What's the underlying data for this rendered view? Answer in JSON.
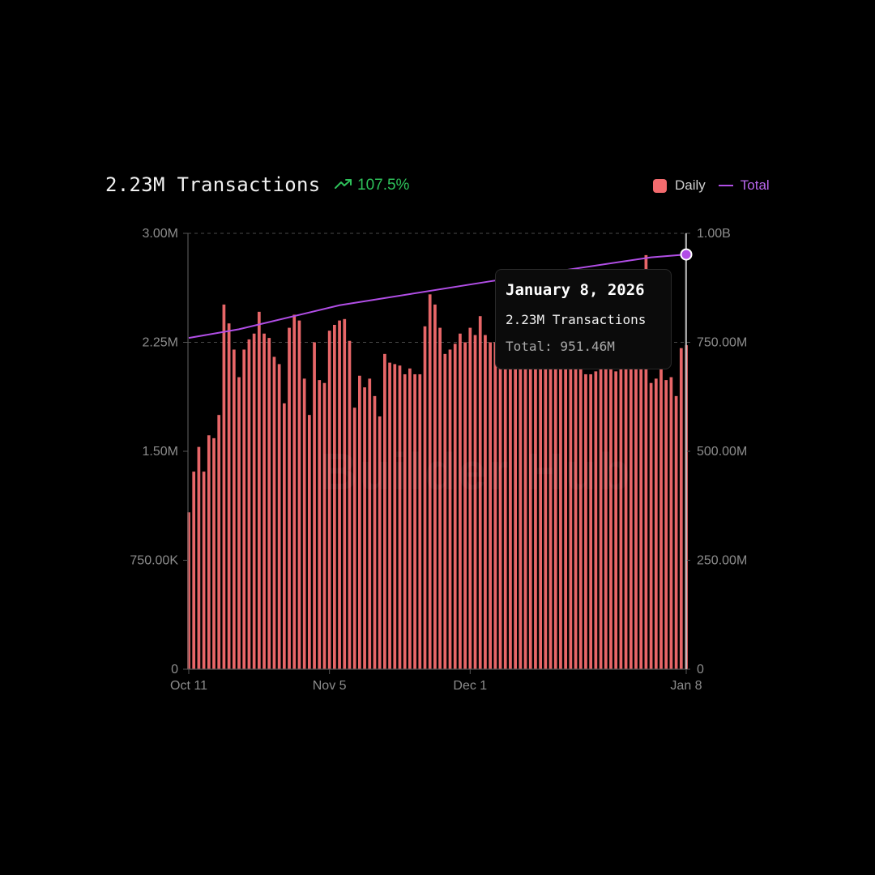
{
  "header": {
    "title": "2.23M Transactions",
    "change": "107.5%",
    "change_color": "#2ec05a",
    "trend_icon": "trend-up-icon"
  },
  "legend": {
    "daily_label": "Daily",
    "total_label": "Total",
    "daily_color": "#f36b6e",
    "total_color": "#b14ee6"
  },
  "tooltip": {
    "date": "January 8, 2026",
    "transactions": "2.23M Transactions",
    "total": "Total: 951.46M"
  },
  "watermark": {
    "text": "Builder Hub"
  },
  "chart_data": {
    "type": "bar",
    "title": "2.23M Transactions",
    "series": [
      {
        "name": "Daily",
        "axis": "left",
        "type": "bar",
        "values": [
          1.08,
          1.36,
          1.53,
          1.36,
          1.61,
          1.59,
          1.75,
          2.51,
          2.38,
          2.2,
          2.01,
          2.2,
          2.27,
          2.31,
          2.46,
          2.31,
          2.28,
          2.15,
          2.1,
          1.83,
          2.35,
          2.44,
          2.4,
          2.0,
          1.75,
          2.25,
          1.99,
          1.97,
          2.33,
          2.37,
          2.4,
          2.41,
          2.26,
          1.8,
          2.02,
          1.94,
          2.0,
          1.88,
          1.74,
          2.17,
          2.11,
          2.1,
          2.09,
          2.03,
          2.07,
          2.03,
          2.03,
          2.36,
          2.58,
          2.51,
          2.35,
          2.17,
          2.2,
          2.24,
          2.31,
          2.25,
          2.35,
          2.3,
          2.43,
          2.3,
          2.25,
          2.25,
          2.25,
          2.25,
          2.25,
          2.25,
          2.25,
          2.25,
          2.25,
          2.25,
          2.25,
          2.25,
          2.25,
          2.25,
          2.25,
          2.25,
          2.25,
          2.25,
          2.25,
          2.03,
          2.03,
          2.05,
          2.1,
          2.07,
          2.12,
          2.05,
          2.1,
          2.07,
          2.1,
          2.12,
          2.15,
          2.85,
          1.97,
          2.0,
          2.07,
          1.99,
          2.01,
          1.88,
          2.21,
          2.23
        ]
      },
      {
        "name": "Total",
        "axis": "right",
        "type": "line",
        "points": [
          [
            0,
            760
          ],
          [
            10,
            780
          ],
          [
            30,
            835
          ],
          [
            60,
            890
          ],
          [
            92,
            945
          ],
          [
            99,
            951.46
          ]
        ]
      }
    ],
    "x_tick_labels": [
      "Oct 11",
      "Nov 5",
      "Dec 1",
      "Jan 8"
    ],
    "x_tick_indices": [
      0,
      28,
      56,
      99
    ],
    "y_left": {
      "min": 0,
      "max": 3.0,
      "ticks": [
        0,
        0.75,
        1.5,
        2.25,
        3.0
      ],
      "tick_labels": [
        "0",
        "750.00K",
        "1.50M",
        "2.25M",
        "3.00M"
      ],
      "unit": "M"
    },
    "y_right": {
      "min": 0,
      "max": 1000,
      "ticks": [
        0,
        250,
        500,
        750,
        1000
      ],
      "tick_labels": [
        "0",
        "250.00M",
        "500.00M",
        "750.00M",
        "1.00B"
      ],
      "unit": "M"
    },
    "highlight_index": 99
  }
}
